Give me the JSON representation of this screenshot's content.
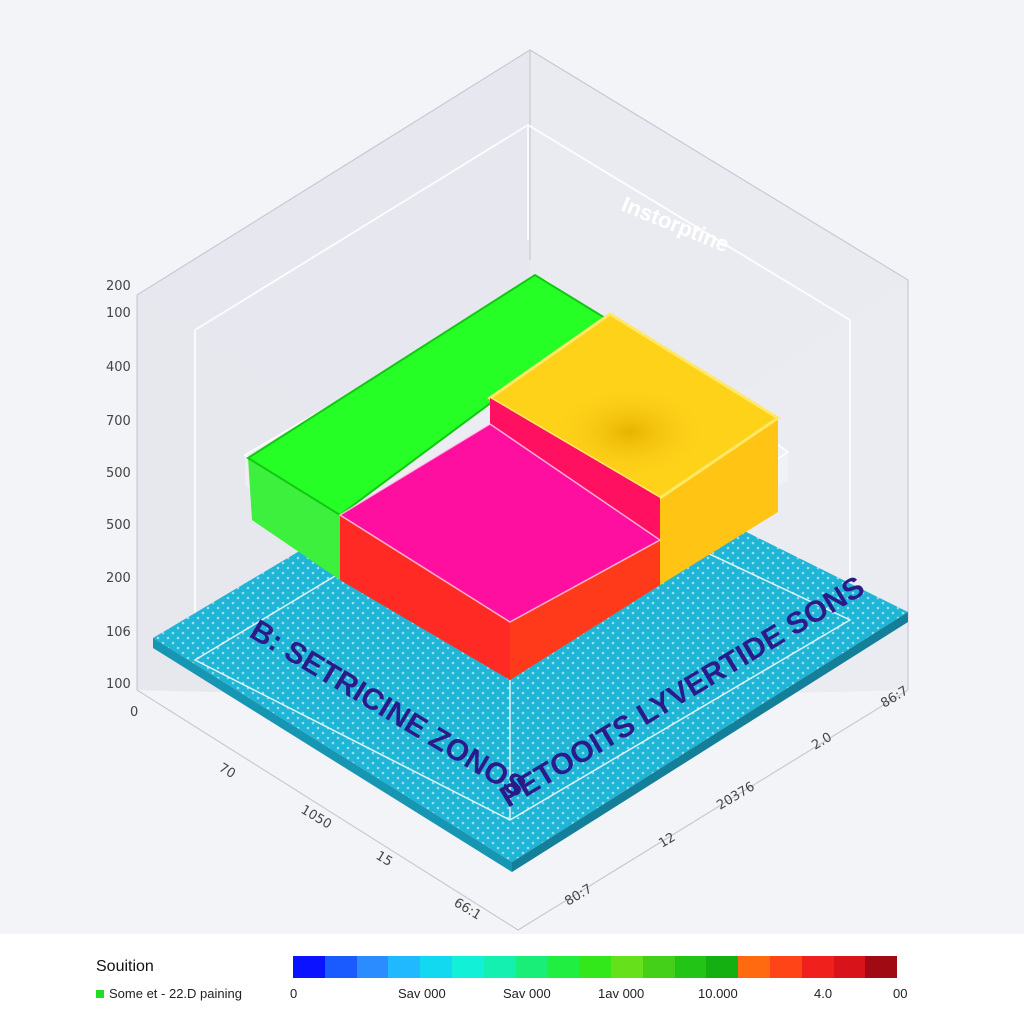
{
  "diagram": {
    "title": "Instorptine",
    "zone_label_left": "B: SETRICINE ZONOS",
    "zone_label_right": "PETOOITS LYVERTIDE SONS",
    "vertical_ticks": [
      "200",
      "100",
      "400",
      "700",
      "500",
      "500",
      "200",
      "106",
      "100",
      "0"
    ],
    "left_floor_ticks": [
      "70",
      "1050",
      "15",
      "66:1"
    ],
    "right_floor_ticks": [
      "86:7",
      "2.0",
      "20376",
      "12",
      "80:7"
    ],
    "block_colors": {
      "base": "#1fb5d6",
      "green": "#22ee22",
      "yellow": "#ffd21a",
      "magenta": "#ff0fa0",
      "red": "#ff2a24"
    }
  },
  "legend": {
    "title": "Souition",
    "item_label": "Some et - 22.D paining",
    "item_color": "#22dd22"
  },
  "colorbar": {
    "colors": [
      "#0b12ff",
      "#1a5bff",
      "#2a8cff",
      "#20b8ff",
      "#12d8f0",
      "#12f0d8",
      "#14f0b0",
      "#18ee78",
      "#20ee40",
      "#33e81a",
      "#66e01a",
      "#44d018",
      "#22c416",
      "#14b012",
      "#ff6a10",
      "#ff4418",
      "#f0201c",
      "#d8141a",
      "#a00a12"
    ],
    "labels": [
      "0",
      "Sav 000",
      "Sav 000",
      "1av 000",
      "10.000",
      "4.0",
      "00"
    ]
  }
}
